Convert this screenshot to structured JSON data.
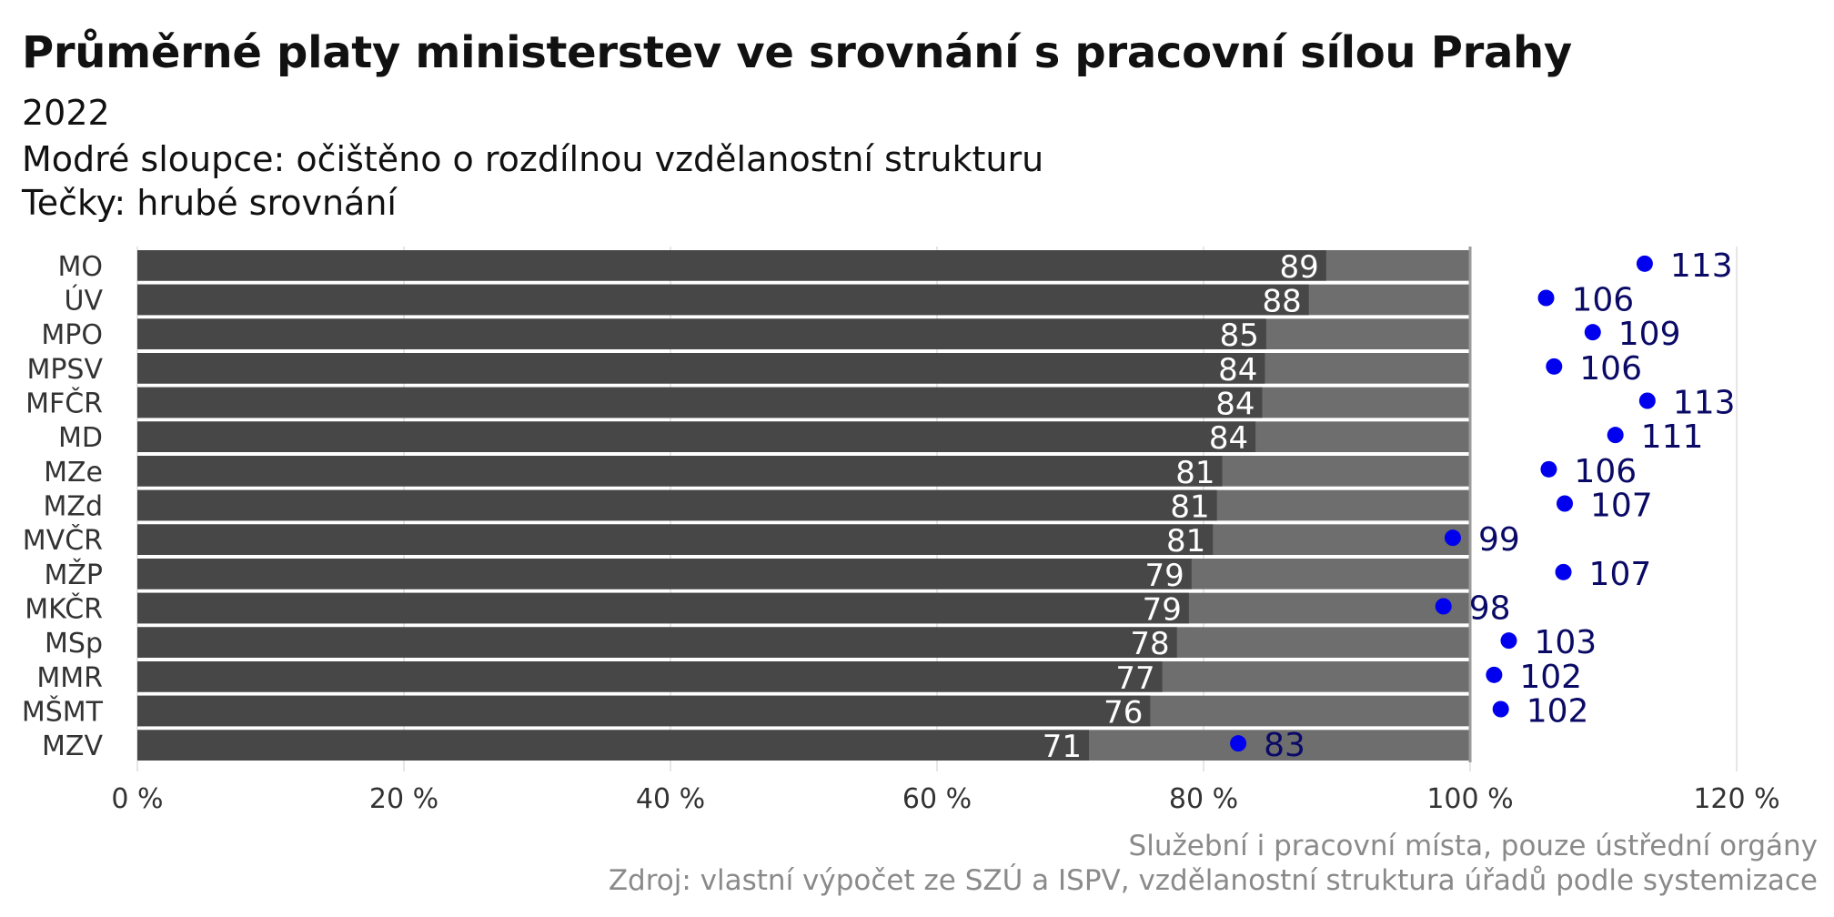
{
  "header": {
    "title": "Průměrné platy ministerstev ve srovnání s pracovní sílou Prahy",
    "subtitle_year": "2022",
    "subtitle_bars": "Modré sloupce: očištěno o rozdílnou vzdělanostní strukturu",
    "subtitle_dots": "Tečky: hrubé srovnání"
  },
  "footer": {
    "note": "Služební i pracovní místa, pouze ústřední orgány",
    "source": "Zdroj: vlastní výpočet ze SZÚ a ISPV, vzdělanostní struktura úřadů podle systemizace"
  },
  "chart_data": {
    "type": "bar",
    "orientation": "horizontal",
    "categories": [
      "MO",
      "ÚV",
      "MPO",
      "MPSV",
      "MFČR",
      "MD",
      "MZe",
      "MZd",
      "MVČR",
      "MŽP",
      "MKČR",
      "MSp",
      "MMR",
      "MŠMT",
      "MZV"
    ],
    "series": [
      {
        "values": [
          89,
          88,
          85,
          84,
          84,
          84,
          81,
          81,
          81,
          79,
          79,
          78,
          77,
          76,
          71
        ]
      },
      {
        "values": [
          113,
          106,
          109,
          106,
          113,
          111,
          106,
          107,
          99,
          107,
          98,
          103,
          102,
          102,
          83
        ]
      }
    ],
    "exact_bar_values": [
      89.2,
      87.9,
      84.7,
      84.6,
      84.4,
      83.9,
      81.4,
      81.0,
      80.7,
      79.1,
      78.9,
      78.0,
      76.9,
      76.0,
      71.4
    ],
    "exact_dot_values": [
      113.1,
      105.7,
      109.2,
      106.3,
      113.3,
      110.9,
      105.9,
      107.1,
      98.7,
      107.0,
      98.0,
      102.9,
      101.8,
      102.3,
      82.6
    ],
    "reference_value": 100,
    "xlim": [
      0,
      120
    ],
    "xticks": [
      0,
      20,
      40,
      60,
      80,
      100,
      120
    ],
    "tick_suffix": " %",
    "grid": true,
    "colors": {
      "bar": "#474747",
      "bar_remainder": "#6e6e6e",
      "dot": "#0000ee",
      "dot_label": "#0a0a66",
      "reference_line": "#9a9a9a"
    }
  }
}
